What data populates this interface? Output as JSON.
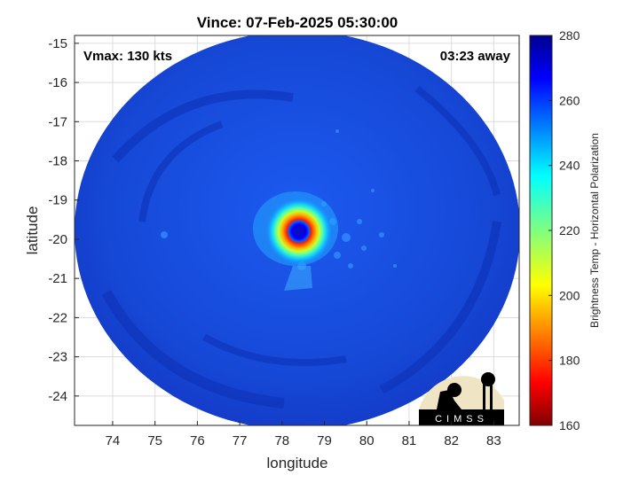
{
  "chart_data": {
    "type": "heatmap",
    "title": "Vince: 07-Feb-2025 05:30:00",
    "xlabel": "longitude",
    "ylabel": "latitude",
    "xlim": [
      73.1,
      83.6
    ],
    "ylim": [
      -24.75,
      -14.8
    ],
    "x_ticks": [
      74,
      75,
      76,
      77,
      78,
      79,
      80,
      81,
      82,
      83
    ],
    "y_ticks": [
      -15,
      -16,
      -17,
      -18,
      -19,
      -20,
      -21,
      -22,
      -23,
      -24
    ],
    "grid": true,
    "annotations": {
      "left": "Vmax: 130 kts",
      "right": "03:23 away"
    },
    "storm_center": {
      "lon": 78.4,
      "lat": -19.8
    },
    "colorbar": {
      "label": "Brightness Temp - Horizontal Polarization",
      "min": 160,
      "max": 280,
      "ticks": [
        160,
        180,
        200,
        220,
        240,
        260,
        280
      ],
      "colormap": "jet"
    },
    "logo_text": "CIMSS"
  },
  "colors": {
    "background_field": "#1a55e6",
    "plot_bg": "#ffffff",
    "axis": "#262626",
    "grid": "#dcdcdc"
  }
}
